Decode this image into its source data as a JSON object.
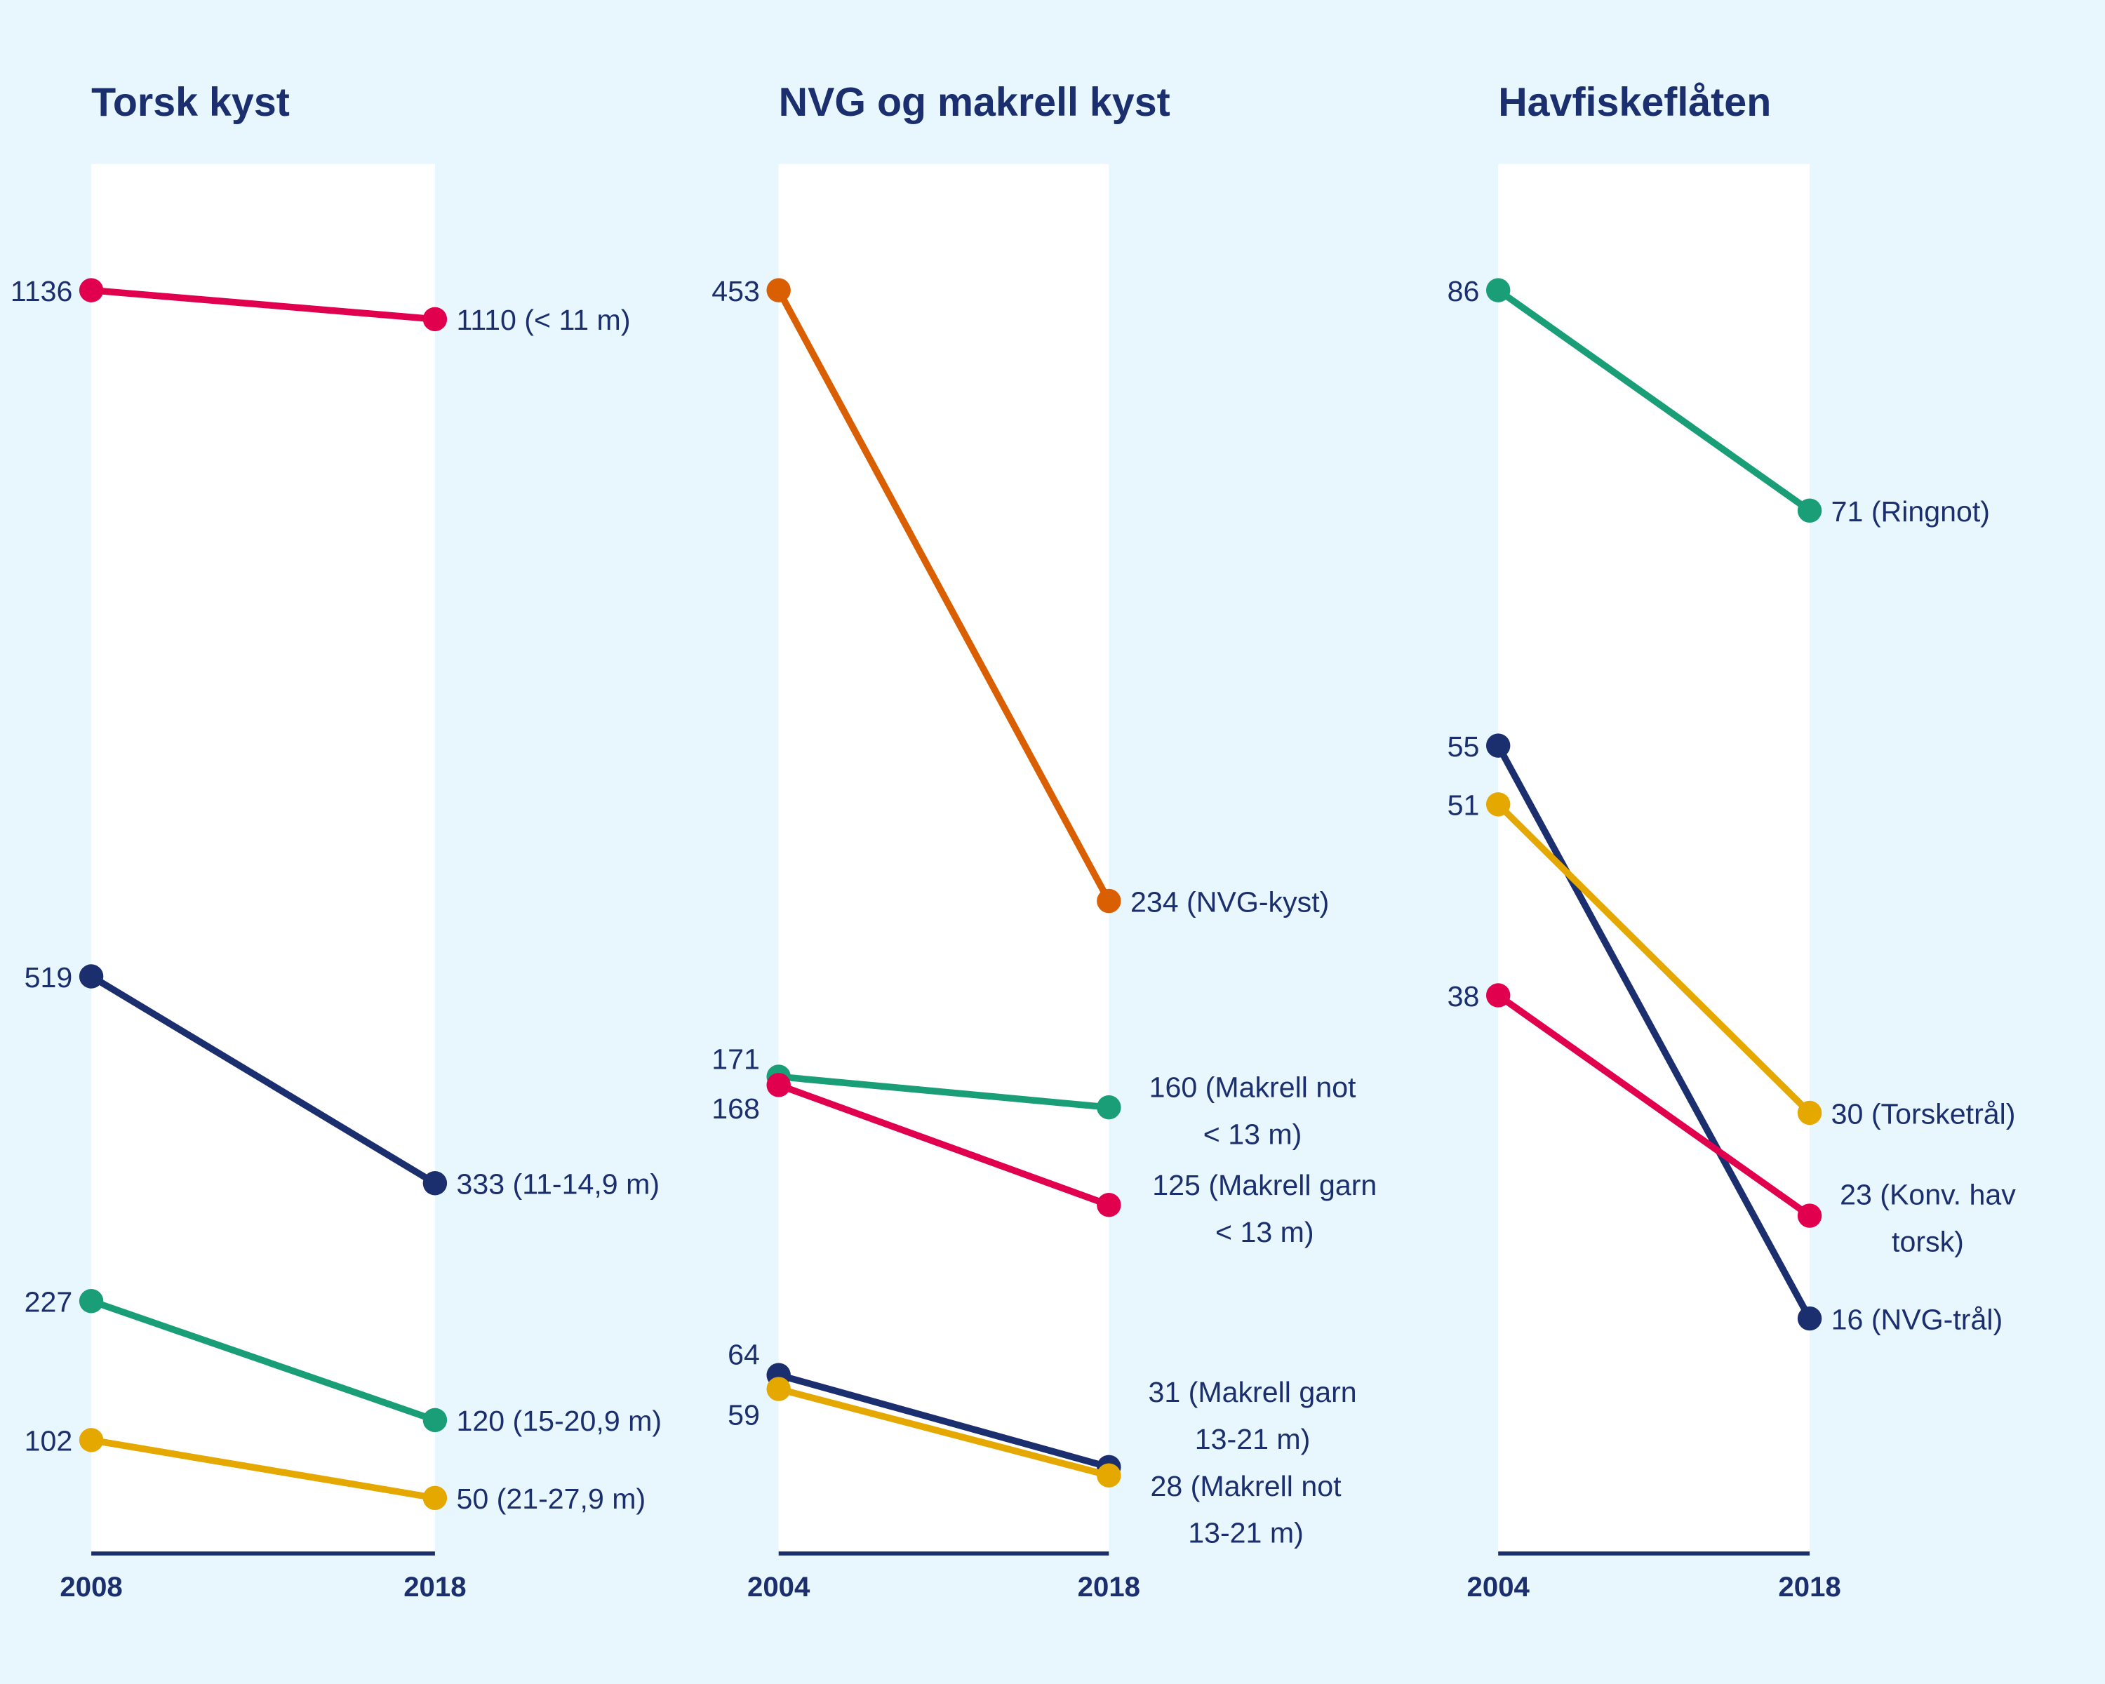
{
  "chart_data": [
    {
      "type": "line",
      "title": "Torsk kyst",
      "x": [
        "2008",
        "2018"
      ],
      "ylim": [
        0,
        1136
      ],
      "grid": false,
      "series": [
        {
          "name": "< 11 m",
          "color": "#E0004D",
          "values": [
            1136,
            1110
          ],
          "start_label": "1136",
          "end_label": [
            "1110 (< 11 m)"
          ]
        },
        {
          "name": "11-14,9 m",
          "color": "#1B2F6E",
          "values": [
            519,
            333
          ],
          "start_label": "519",
          "end_label": [
            "333 (11-14,9 m)"
          ]
        },
        {
          "name": "15-20,9 m",
          "color": "#1A9E77",
          "values": [
            227,
            120
          ],
          "start_label": "227",
          "end_label": [
            "120 (15-20,9 m)"
          ]
        },
        {
          "name": "21-27,9 m",
          "color": "#E5A800",
          "values": [
            102,
            50
          ],
          "start_label": "102",
          "end_label": [
            "50 (21-27,9 m)"
          ]
        }
      ]
    },
    {
      "type": "line",
      "title": "NVG og makrell kyst",
      "x": [
        "2004",
        "2018"
      ],
      "ylim": [
        0,
        453
      ],
      "grid": false,
      "series": [
        {
          "name": "NVG-kyst",
          "color": "#D95F02",
          "values": [
            453,
            234
          ],
          "start_label": "453",
          "end_label": [
            "234 (NVG-kyst)"
          ]
        },
        {
          "name": "Makrell not < 13 m",
          "color": "#1A9E77",
          "values": [
            171,
            160
          ],
          "start_label": "171",
          "end_label": [
            "160 (Makrell not",
            "< 13 m)"
          ]
        },
        {
          "name": "Makrell garn < 13 m",
          "color": "#E0004D",
          "values": [
            168,
            125
          ],
          "start_label": "168",
          "end_label": [
            "125 (Makrell garn",
            "< 13 m)"
          ]
        },
        {
          "name": "Makrell garn 13-21 m",
          "color": "#1B2F6E",
          "values": [
            64,
            31
          ],
          "start_label": "64",
          "end_label": [
            "31 (Makrell garn",
            "13-21 m)"
          ]
        },
        {
          "name": "Makrell not 13-21 m",
          "color": "#E5A800",
          "values": [
            59,
            28
          ],
          "start_label": "59",
          "end_label": [
            "28 (Makrell not",
            "13-21 m)"
          ]
        }
      ]
    },
    {
      "type": "line",
      "title": "Havfiskeflåten",
      "x": [
        "2004",
        "2018"
      ],
      "ylim": [
        0,
        86
      ],
      "grid": false,
      "series": [
        {
          "name": "Ringnot",
          "color": "#1A9E77",
          "values": [
            86,
            71
          ],
          "start_label": "86",
          "end_label": [
            "71 (Ringnot)"
          ]
        },
        {
          "name": "NVG-trål",
          "color": "#1B2F6E",
          "values": [
            55,
            16
          ],
          "start_label": "55",
          "end_label": [
            "16 (NVG-trål)"
          ]
        },
        {
          "name": "Torsketrål",
          "color": "#E5A800",
          "values": [
            51,
            30
          ],
          "start_label": "51",
          "end_label": [
            "30 (Torsketrål)"
          ]
        },
        {
          "name": "Konv. hav torsk",
          "color": "#E0004D",
          "values": [
            38,
            23
          ],
          "start_label": "38",
          "end_label": [
            "23 (Konv. hav",
            "torsk)"
          ]
        }
      ]
    }
  ]
}
